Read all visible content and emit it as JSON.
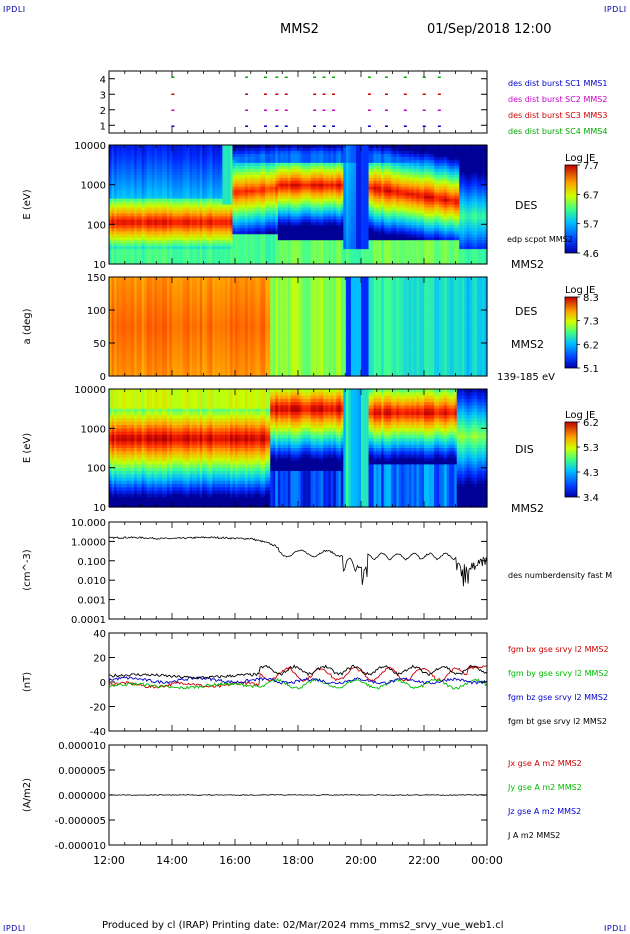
{
  "corners": {
    "tl": "IPDLI",
    "tr": "IPDLI",
    "bl": "IPDLI",
    "br": "IPDLI"
  },
  "header": {
    "spacecraft": "MMS2",
    "datetime": "01/Sep/2018 12:00"
  },
  "footer": {
    "text": "Produced by cl (IRAP)   Printing date: 02/Mar/2024   mms_mms2_srvy_vue_web1.cl"
  },
  "x_axis": {
    "ticks": [
      "12:00",
      "14:00",
      "16:00",
      "18:00",
      "20:00",
      "22:00",
      "00:00"
    ]
  },
  "chart_data": [
    {
      "type": "scatter",
      "panel": "burst-availability",
      "y_ticks": [
        "4",
        "3",
        "2",
        "1"
      ],
      "legend": [
        {
          "label": "des dist burst SC1 MMS1",
          "color": "#0000cc"
        },
        {
          "label": "des dist burst SC2 MMS2",
          "color": "#cc00cc"
        },
        {
          "label": "des dist burst SC3 MMS3",
          "color": "#cc0000"
        },
        {
          "label": "des dist burst SC4 MMS4",
          "color": "#00aa00"
        }
      ]
    },
    {
      "type": "heatmap",
      "panel": "des-energy",
      "ylabel": "E (eV)",
      "y_ticks": [
        "10000",
        "1000",
        "100",
        "10"
      ],
      "labels": [
        "DES",
        "MMS2"
      ],
      "overlay_label": "edp scpot MMS2",
      "colorbar": {
        "title": "Log JE",
        "ticks": [
          "7.7",
          "6.7",
          "5.7",
          "4.6"
        ]
      }
    },
    {
      "type": "heatmap",
      "panel": "des-pitch-angle",
      "ylabel": "a (deg)",
      "y_ticks": [
        "150",
        "100",
        "50",
        "0"
      ],
      "labels": [
        "DES",
        "MMS2",
        "139-185 eV"
      ],
      "colorbar": {
        "title": "Log JE",
        "ticks": [
          "8.3",
          "7.3",
          "6.2",
          "5.1"
        ]
      }
    },
    {
      "type": "heatmap",
      "panel": "dis-energy",
      "ylabel": "E (eV)",
      "y_ticks": [
        "10000",
        "1000",
        "100",
        "10"
      ],
      "labels": [
        "DIS",
        "MMS2"
      ],
      "colorbar": {
        "title": "Log JE",
        "ticks": [
          "6.2",
          "5.3",
          "4.3",
          "3.4"
        ]
      }
    },
    {
      "type": "line",
      "panel": "density",
      "ylabel": "(cm^-3)",
      "y_ticks": [
        "10.000",
        "1.0000",
        "0.100",
        "0.010",
        "0.001",
        "0.0001"
      ],
      "series": [
        {
          "name": "des numberdensity fast M",
          "color": "#000000"
        }
      ]
    },
    {
      "type": "line",
      "panel": "magnetic-field",
      "ylabel": "(nT)",
      "y_ticks": [
        "40",
        "20",
        "0",
        "-20",
        "-40"
      ],
      "ylim": [
        -50,
        50
      ],
      "series": [
        {
          "name": "fgm bx gse srvy l2 MMS2",
          "color": "#cc0000"
        },
        {
          "name": "fgm by gse srvy l2 MMS2",
          "color": "#00bb00"
        },
        {
          "name": "fgm bz gse srvy l2 MMS2",
          "color": "#0000cc"
        },
        {
          "name": "fgm bt gse srvy l2 MMS2",
          "color": "#000000"
        }
      ]
    },
    {
      "type": "line",
      "panel": "current-density",
      "ylabel": "(A/m2)",
      "y_ticks": [
        "0.000010",
        "0.000005",
        "0.000000",
        "-0.000005",
        "-0.000010"
      ],
      "ylim": [
        -1e-05,
        1e-05
      ],
      "series": [
        {
          "name": "Jx gse A m2 MMS2",
          "color": "#cc0000"
        },
        {
          "name": "Jy gse A m2 MMS2",
          "color": "#00bb00"
        },
        {
          "name": "Jz gse A m2 MMS2",
          "color": "#0000cc"
        },
        {
          "name": "J A m2 MMS2",
          "color": "#000000"
        }
      ]
    }
  ]
}
